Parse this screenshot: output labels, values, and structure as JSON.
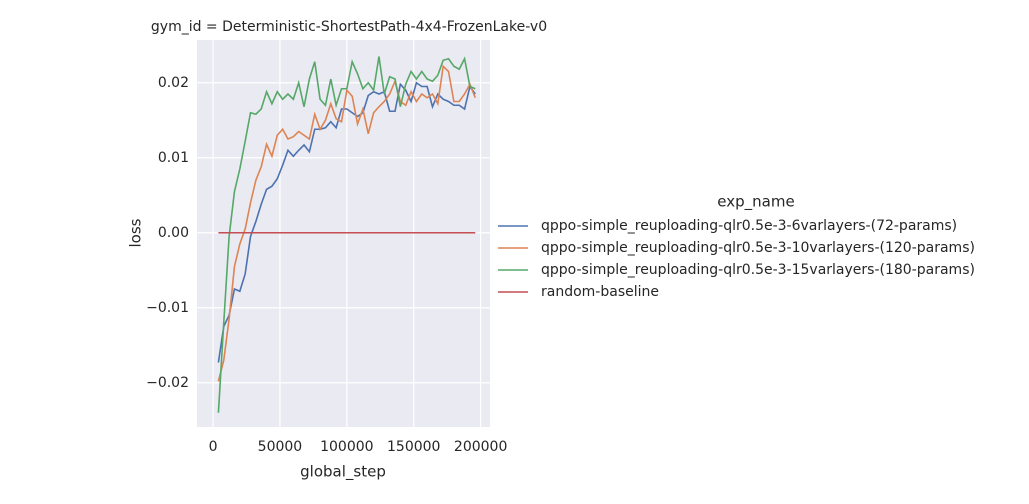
{
  "chart_data": {
    "type": "line",
    "title": "gym_id = Deterministic-ShortestPath-4x4-FrozenLake-v0",
    "x_label": "global_step",
    "y_label": "loss",
    "legend_title": "exp_name",
    "legend_position": "right",
    "grid": true,
    "xlim": [
      -12000,
      207000
    ],
    "ylim": [
      -0.0259,
      0.0257
    ],
    "xticks": [
      0,
      50000,
      100000,
      150000,
      200000
    ],
    "yticks": [
      {
        "value": -0.02,
        "label": "−0.02"
      },
      {
        "value": -0.01,
        "label": "−0.01"
      },
      {
        "value": 0,
        "label": "0.00"
      },
      {
        "value": 0.01,
        "label": "0.01"
      },
      {
        "value": 0.02,
        "label": "0.02"
      }
    ],
    "x": [
      4000,
      8000,
      12000,
      16000,
      20000,
      24000,
      28000,
      32000,
      36000,
      40000,
      44000,
      48000,
      52000,
      56000,
      60000,
      64000,
      68000,
      72000,
      76000,
      80000,
      84000,
      88000,
      92000,
      96000,
      100000,
      104000,
      108000,
      112000,
      116000,
      120000,
      124000,
      128000,
      132000,
      136000,
      140000,
      144000,
      148000,
      152000,
      156000,
      160000,
      164000,
      168000,
      172000,
      176000,
      180000,
      184000,
      188000,
      192000,
      196000
    ],
    "series": [
      {
        "name": "qppo-simple_reuploading-qlr0.5e-3-6varlayers-(72-params)",
        "color": "#4c72b0",
        "values": [
          -0.0173,
          -0.0125,
          -0.011,
          -0.0075,
          -0.0078,
          -0.0055,
          -0.0005,
          0.0015,
          0.0038,
          0.0058,
          0.0062,
          0.0072,
          0.009,
          0.011,
          0.0102,
          0.011,
          0.0117,
          0.0108,
          0.0138,
          0.0138,
          0.014,
          0.0148,
          0.014,
          0.0165,
          0.0165,
          0.016,
          0.0155,
          0.016,
          0.0183,
          0.0188,
          0.0185,
          0.0188,
          0.0162,
          0.0162,
          0.0198,
          0.019,
          0.0175,
          0.02,
          0.0195,
          0.0195,
          0.0168,
          0.0185,
          0.0178,
          0.0175,
          0.017,
          0.017,
          0.0165,
          0.0195,
          0.0185
        ]
      },
      {
        "name": "qppo-simple_reuploading-qlr0.5e-3-10varlayers-(120-params)",
        "color": "#dd8452",
        "values": [
          -0.0198,
          -0.017,
          -0.0115,
          -0.0045,
          -0.0015,
          0.0005,
          0.004,
          0.007,
          0.0088,
          0.0118,
          0.0102,
          0.013,
          0.0138,
          0.0125,
          0.0128,
          0.0135,
          0.013,
          0.0125,
          0.0158,
          0.0138,
          0.015,
          0.0172,
          0.0152,
          0.0148,
          0.019,
          0.0182,
          0.0145,
          0.0165,
          0.0132,
          0.016,
          0.0168,
          0.0175,
          0.0185,
          0.0202,
          0.0175,
          0.017,
          0.0188,
          0.0175,
          0.0185,
          0.018,
          0.0185,
          0.0172,
          0.0222,
          0.0215,
          0.0175,
          0.0175,
          0.0185,
          0.0198,
          0.018
        ]
      },
      {
        "name": "qppo-simple_reuploading-qlr0.5e-3-15varlayers-(180-params)",
        "color": "#55a868",
        "values": [
          -0.024,
          -0.012,
          -0.0005,
          0.0055,
          0.0085,
          0.0122,
          0.016,
          0.0158,
          0.0165,
          0.0188,
          0.0172,
          0.0188,
          0.0178,
          0.0185,
          0.0178,
          0.02,
          0.0168,
          0.0205,
          0.0228,
          0.0178,
          0.017,
          0.0205,
          0.017,
          0.0192,
          0.0192,
          0.0228,
          0.0212,
          0.0192,
          0.02,
          0.019,
          0.0235,
          0.0185,
          0.0208,
          0.0205,
          0.0168,
          0.0198,
          0.0215,
          0.0205,
          0.0215,
          0.0205,
          0.0202,
          0.021,
          0.023,
          0.0232,
          0.0222,
          0.0218,
          0.0232,
          0.0195,
          0.0192
        ]
      },
      {
        "name": "random-baseline",
        "color": "#c44e52",
        "values": [
          0,
          0,
          0,
          0,
          0,
          0,
          0,
          0,
          0,
          0,
          0,
          0,
          0,
          0,
          0,
          0,
          0,
          0,
          0,
          0,
          0,
          0,
          0,
          0,
          0,
          0,
          0,
          0,
          0,
          0,
          0,
          0,
          0,
          0,
          0,
          0,
          0,
          0,
          0,
          0,
          0,
          0,
          0,
          0,
          0,
          0,
          0,
          0,
          0
        ]
      }
    ]
  }
}
